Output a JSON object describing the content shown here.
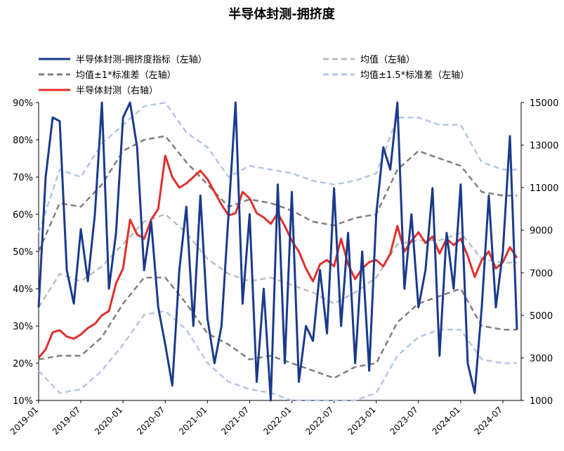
{
  "chart_data": {
    "type": "line",
    "title": "半导体封测-拥挤度",
    "legend": [
      {
        "label": "半导体封测-拥挤度指标（左轴）",
        "key": "crowd"
      },
      {
        "label": "均值（左轴）",
        "key": "mean"
      },
      {
        "label": "均值±1*标准差（左轴）",
        "key": "sd1"
      },
      {
        "label": "均值±1.5*标准差（左轴）",
        "key": "sd15"
      },
      {
        "label": "半导体封测（右轴）",
        "key": "price"
      }
    ],
    "legend_placement": "top",
    "left_axis": {
      "min": 0.1,
      "max": 0.9,
      "ticks": [
        "10%",
        "20%",
        "30%",
        "40%",
        "50%",
        "60%",
        "70%",
        "80%",
        "90%"
      ]
    },
    "right_axis": {
      "min": 1000,
      "max": 15000,
      "ticks": [
        "1000",
        "3000",
        "5000",
        "7000",
        "9000",
        "11000",
        "13000",
        "15000"
      ]
    },
    "x_range": [
      "2019-01",
      "2024-09"
    ],
    "x_ticks": [
      "2019-01",
      "2019-07",
      "2020-01",
      "2020-07",
      "2021-01",
      "2021-07",
      "2022-01",
      "2022-07",
      "2023-01",
      "2023-07",
      "2024-01",
      "2024-07"
    ],
    "colors": {
      "crowd": "#1a3a8c",
      "price": "#e0302c",
      "mean": "#bdbdbd",
      "sd1": "#7f7f7f",
      "sd15": "#b4c6e7"
    },
    "series": [
      {
        "key": "crowd",
        "axis": "left",
        "points": [
          [
            "2019-01",
            0.35
          ],
          [
            "2019-02",
            0.7
          ],
          [
            "2019-03",
            0.86
          ],
          [
            "2019-04",
            0.85
          ],
          [
            "2019-05",
            0.45
          ],
          [
            "2019-06",
            0.36
          ],
          [
            "2019-07",
            0.56
          ],
          [
            "2019-08",
            0.42
          ],
          [
            "2019-09",
            0.6
          ],
          [
            "2019-10",
            0.9
          ],
          [
            "2019-11",
            0.4
          ],
          [
            "2019-12",
            0.55
          ],
          [
            "2020-01",
            0.86
          ],
          [
            "2020-02",
            0.9
          ],
          [
            "2020-03",
            0.78
          ],
          [
            "2020-04",
            0.45
          ],
          [
            "2020-05",
            0.58
          ],
          [
            "2020-06",
            0.35
          ],
          [
            "2020-07",
            0.25
          ],
          [
            "2020-08",
            0.14
          ],
          [
            "2020-09",
            0.45
          ],
          [
            "2020-10",
            0.62
          ],
          [
            "2020-11",
            0.3
          ],
          [
            "2020-12",
            0.65
          ],
          [
            "2021-01",
            0.32
          ],
          [
            "2021-02",
            0.2
          ],
          [
            "2021-03",
            0.3
          ],
          [
            "2021-04",
            0.6
          ],
          [
            "2021-05",
            0.9
          ],
          [
            "2021-06",
            0.36
          ],
          [
            "2021-07",
            0.6
          ],
          [
            "2021-08",
            0.15
          ],
          [
            "2021-09",
            0.4
          ],
          [
            "2021-10",
            0.1
          ],
          [
            "2021-11",
            0.68
          ],
          [
            "2021-12",
            0.2
          ],
          [
            "2022-01",
            0.66
          ],
          [
            "2022-02",
            0.15
          ],
          [
            "2022-03",
            0.3
          ],
          [
            "2022-04",
            0.26
          ],
          [
            "2022-05",
            0.45
          ],
          [
            "2022-06",
            0.28
          ],
          [
            "2022-07",
            0.67
          ],
          [
            "2022-08",
            0.3
          ],
          [
            "2022-09",
            0.55
          ],
          [
            "2022-10",
            0.2
          ],
          [
            "2022-11",
            0.5
          ],
          [
            "2022-12",
            0.18
          ],
          [
            "2023-01",
            0.6
          ],
          [
            "2023-02",
            0.78
          ],
          [
            "2023-03",
            0.72
          ],
          [
            "2023-04",
            0.9
          ],
          [
            "2023-05",
            0.4
          ],
          [
            "2023-06",
            0.6
          ],
          [
            "2023-07",
            0.35
          ],
          [
            "2023-08",
            0.45
          ],
          [
            "2023-09",
            0.67
          ],
          [
            "2023-10",
            0.22
          ],
          [
            "2023-11",
            0.55
          ],
          [
            "2023-12",
            0.4
          ],
          [
            "2024-01",
            0.68
          ],
          [
            "2024-02",
            0.2
          ],
          [
            "2024-03",
            0.12
          ],
          [
            "2024-04",
            0.35
          ],
          [
            "2024-05",
            0.65
          ],
          [
            "2024-06",
            0.35
          ],
          [
            "2024-07",
            0.5
          ],
          [
            "2024-08",
            0.81
          ],
          [
            "2024-09",
            0.29
          ]
        ]
      },
      {
        "key": "mean",
        "axis": "left",
        "points": [
          [
            "2019-01",
            0.35
          ],
          [
            "2019-04",
            0.44
          ],
          [
            "2019-07",
            0.42
          ],
          [
            "2019-10",
            0.46
          ],
          [
            "2020-01",
            0.52
          ],
          [
            "2020-04",
            0.58
          ],
          [
            "2020-07",
            0.6
          ],
          [
            "2020-10",
            0.55
          ],
          [
            "2021-01",
            0.48
          ],
          [
            "2021-04",
            0.44
          ],
          [
            "2021-07",
            0.42
          ],
          [
            "2021-10",
            0.43
          ],
          [
            "2022-01",
            0.41
          ],
          [
            "2022-04",
            0.39
          ],
          [
            "2022-07",
            0.36
          ],
          [
            "2022-10",
            0.39
          ],
          [
            "2023-01",
            0.43
          ],
          [
            "2023-04",
            0.52
          ],
          [
            "2023-07",
            0.53
          ],
          [
            "2023-10",
            0.53
          ],
          [
            "2024-01",
            0.55
          ],
          [
            "2024-04",
            0.48
          ],
          [
            "2024-07",
            0.47
          ],
          [
            "2024-09",
            0.47
          ]
        ]
      },
      {
        "key": "sd1_upper",
        "axis": "left",
        "points": [
          [
            "2019-01",
            0.5
          ],
          [
            "2019-04",
            0.63
          ],
          [
            "2019-07",
            0.62
          ],
          [
            "2019-10",
            0.68
          ],
          [
            "2020-01",
            0.77
          ],
          [
            "2020-04",
            0.8
          ],
          [
            "2020-07",
            0.81
          ],
          [
            "2020-10",
            0.74
          ],
          [
            "2021-01",
            0.68
          ],
          [
            "2021-04",
            0.62
          ],
          [
            "2021-07",
            0.64
          ],
          [
            "2021-10",
            0.63
          ],
          [
            "2022-01",
            0.61
          ],
          [
            "2022-04",
            0.58
          ],
          [
            "2022-07",
            0.57
          ],
          [
            "2022-10",
            0.59
          ],
          [
            "2023-01",
            0.6
          ],
          [
            "2023-04",
            0.72
          ],
          [
            "2023-07",
            0.77
          ],
          [
            "2023-10",
            0.75
          ],
          [
            "2024-01",
            0.73
          ],
          [
            "2024-04",
            0.66
          ],
          [
            "2024-07",
            0.65
          ],
          [
            "2024-09",
            0.65
          ]
        ]
      },
      {
        "key": "sd1_lower",
        "axis": "left",
        "points": [
          [
            "2019-01",
            0.21
          ],
          [
            "2019-04",
            0.22
          ],
          [
            "2019-07",
            0.22
          ],
          [
            "2019-10",
            0.27
          ],
          [
            "2020-01",
            0.36
          ],
          [
            "2020-04",
            0.43
          ],
          [
            "2020-07",
            0.43
          ],
          [
            "2020-10",
            0.36
          ],
          [
            "2021-01",
            0.28
          ],
          [
            "2021-04",
            0.25
          ],
          [
            "2021-07",
            0.21
          ],
          [
            "2021-10",
            0.22
          ],
          [
            "2022-01",
            0.2
          ],
          [
            "2022-04",
            0.18
          ],
          [
            "2022-07",
            0.16
          ],
          [
            "2022-10",
            0.19
          ],
          [
            "2023-01",
            0.2
          ],
          [
            "2023-04",
            0.31
          ],
          [
            "2023-07",
            0.36
          ],
          [
            "2023-10",
            0.38
          ],
          [
            "2024-01",
            0.4
          ],
          [
            "2024-04",
            0.3
          ],
          [
            "2024-07",
            0.29
          ],
          [
            "2024-09",
            0.29
          ]
        ]
      },
      {
        "key": "sd15_upper",
        "axis": "left",
        "points": [
          [
            "2019-01",
            0.55
          ],
          [
            "2019-04",
            0.72
          ],
          [
            "2019-07",
            0.7
          ],
          [
            "2019-10",
            0.79
          ],
          [
            "2020-01",
            0.84
          ],
          [
            "2020-04",
            0.89
          ],
          [
            "2020-07",
            0.9
          ],
          [
            "2020-10",
            0.82
          ],
          [
            "2021-01",
            0.78
          ],
          [
            "2021-04",
            0.7
          ],
          [
            "2021-07",
            0.73
          ],
          [
            "2021-10",
            0.72
          ],
          [
            "2022-01",
            0.71
          ],
          [
            "2022-04",
            0.69
          ],
          [
            "2022-07",
            0.68
          ],
          [
            "2022-10",
            0.69
          ],
          [
            "2023-01",
            0.71
          ],
          [
            "2023-04",
            0.86
          ],
          [
            "2023-07",
            0.86
          ],
          [
            "2023-10",
            0.84
          ],
          [
            "2024-01",
            0.84
          ],
          [
            "2024-04",
            0.74
          ],
          [
            "2024-07",
            0.72
          ],
          [
            "2024-09",
            0.72
          ]
        ]
      },
      {
        "key": "sd15_lower",
        "axis": "left",
        "points": [
          [
            "2019-01",
            0.18
          ],
          [
            "2019-04",
            0.12
          ],
          [
            "2019-07",
            0.13
          ],
          [
            "2019-10",
            0.18
          ],
          [
            "2020-01",
            0.25
          ],
          [
            "2020-04",
            0.33
          ],
          [
            "2020-07",
            0.34
          ],
          [
            "2020-10",
            0.29
          ],
          [
            "2021-01",
            0.2
          ],
          [
            "2021-04",
            0.15
          ],
          [
            "2021-07",
            0.13
          ],
          [
            "2021-10",
            0.12
          ],
          [
            "2022-01",
            0.1
          ],
          [
            "2022-04",
            0.1
          ],
          [
            "2022-07",
            0.1
          ],
          [
            "2022-10",
            0.1
          ],
          [
            "2023-01",
            0.12
          ],
          [
            "2023-04",
            0.22
          ],
          [
            "2023-07",
            0.27
          ],
          [
            "2023-10",
            0.29
          ],
          [
            "2024-01",
            0.29
          ],
          [
            "2024-04",
            0.21
          ],
          [
            "2024-07",
            0.2
          ],
          [
            "2024-09",
            0.2
          ]
        ]
      },
      {
        "key": "price",
        "axis": "right",
        "points": [
          [
            "2019-01",
            3000
          ],
          [
            "2019-02",
            3400
          ],
          [
            "2019-03",
            4200
          ],
          [
            "2019-04",
            4300
          ],
          [
            "2019-05",
            4000
          ],
          [
            "2019-06",
            3900
          ],
          [
            "2019-07",
            4100
          ],
          [
            "2019-08",
            4400
          ],
          [
            "2019-09",
            4600
          ],
          [
            "2019-10",
            5000
          ],
          [
            "2019-11",
            5200
          ],
          [
            "2019-12",
            6500
          ],
          [
            "2020-01",
            7200
          ],
          [
            "2020-02",
            9500
          ],
          [
            "2020-03",
            8800
          ],
          [
            "2020-04",
            8600
          ],
          [
            "2020-05",
            9500
          ],
          [
            "2020-06",
            10000
          ],
          [
            "2020-07",
            12500
          ],
          [
            "2020-08",
            11500
          ],
          [
            "2020-09",
            11000
          ],
          [
            "2020-10",
            11200
          ],
          [
            "2020-11",
            11500
          ],
          [
            "2020-12",
            11800
          ],
          [
            "2021-01",
            11400
          ],
          [
            "2021-02",
            10800
          ],
          [
            "2021-03",
            10200
          ],
          [
            "2021-04",
            9700
          ],
          [
            "2021-05",
            9800
          ],
          [
            "2021-06",
            10800
          ],
          [
            "2021-07",
            10500
          ],
          [
            "2021-08",
            9800
          ],
          [
            "2021-09",
            9600
          ],
          [
            "2021-10",
            9300
          ],
          [
            "2021-11",
            9800
          ],
          [
            "2021-12",
            9200
          ],
          [
            "2022-01",
            8500
          ],
          [
            "2022-02",
            8000
          ],
          [
            "2022-03",
            7200
          ],
          [
            "2022-04",
            6600
          ],
          [
            "2022-05",
            7400
          ],
          [
            "2022-06",
            7600
          ],
          [
            "2022-07",
            7300
          ],
          [
            "2022-08",
            8600
          ],
          [
            "2022-09",
            7400
          ],
          [
            "2022-10",
            6700
          ],
          [
            "2022-11",
            7200
          ],
          [
            "2022-12",
            7500
          ],
          [
            "2023-01",
            7600
          ],
          [
            "2023-02",
            7300
          ],
          [
            "2023-03",
            7900
          ],
          [
            "2023-04",
            9200
          ],
          [
            "2023-05",
            8000
          ],
          [
            "2023-06",
            8500
          ],
          [
            "2023-07",
            8900
          ],
          [
            "2023-08",
            8400
          ],
          [
            "2023-09",
            8700
          ],
          [
            "2023-10",
            7900
          ],
          [
            "2023-11",
            8600
          ],
          [
            "2023-12",
            8300
          ],
          [
            "2024-01",
            8600
          ],
          [
            "2024-02",
            7800
          ],
          [
            "2024-03",
            6800
          ],
          [
            "2024-04",
            7600
          ],
          [
            "2024-05",
            8000
          ],
          [
            "2024-06",
            7200
          ],
          [
            "2024-07",
            7500
          ],
          [
            "2024-08",
            8200
          ],
          [
            "2024-09",
            7700
          ]
        ]
      }
    ]
  }
}
